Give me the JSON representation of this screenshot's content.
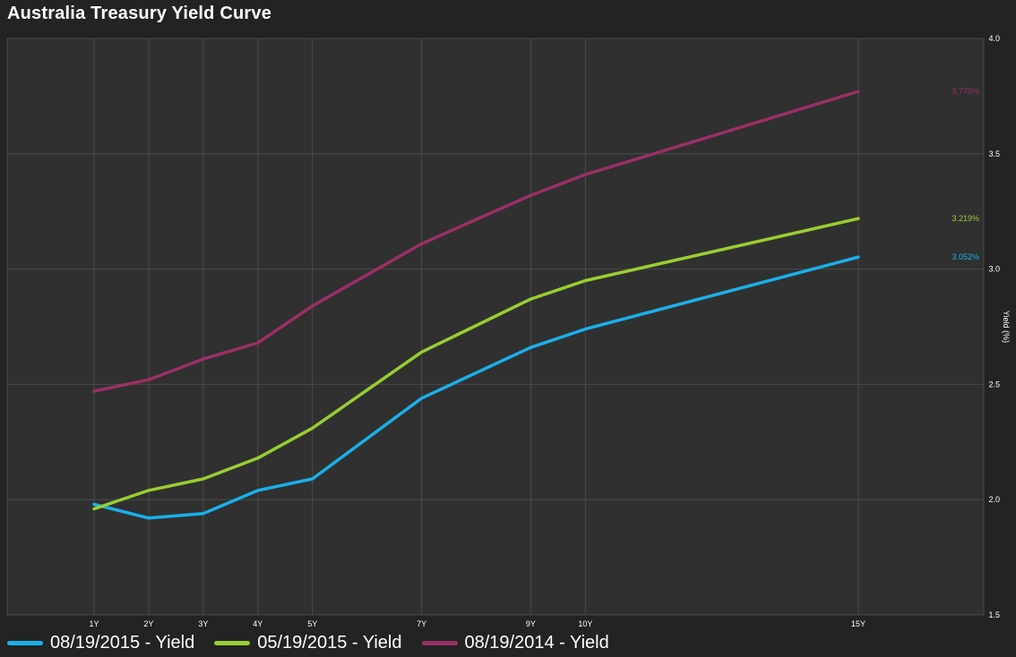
{
  "chart_data": {
    "type": "line",
    "title": "Australia Treasury Yield Curve",
    "xlabel": "",
    "ylabel": "Yield (%)",
    "categories": [
      "1Y",
      "2Y",
      "3Y",
      "4Y",
      "5Y",
      "7Y",
      "9Y",
      "10Y",
      "15Y"
    ],
    "x_years": [
      1,
      2,
      3,
      4,
      5,
      7,
      9,
      10,
      15
    ],
    "ylim": [
      1.5,
      4.0
    ],
    "yticks": [
      "1.5",
      "2.0",
      "2.5",
      "3.0",
      "3.5",
      "4.0"
    ],
    "grid": true,
    "legend": "bottom",
    "series": [
      {
        "name": "08/19/2015 - Yield",
        "color": "#1ab0ea",
        "values": [
          1.98,
          1.92,
          1.94,
          2.04,
          2.09,
          2.44,
          2.66,
          2.74,
          3.052
        ],
        "end_label": "3.052%"
      },
      {
        "name": "05/19/2015 - Yield",
        "color": "#9acd32",
        "values": [
          1.96,
          2.04,
          2.09,
          2.18,
          2.31,
          2.64,
          2.87,
          2.95,
          3.219
        ],
        "end_label": "3.219%"
      },
      {
        "name": "08/19/2014 - Yield",
        "color": "#9b2f66",
        "values": [
          2.47,
          2.52,
          2.61,
          2.68,
          2.84,
          3.11,
          3.32,
          3.41,
          3.77
        ],
        "end_label": "3.770%"
      }
    ]
  }
}
